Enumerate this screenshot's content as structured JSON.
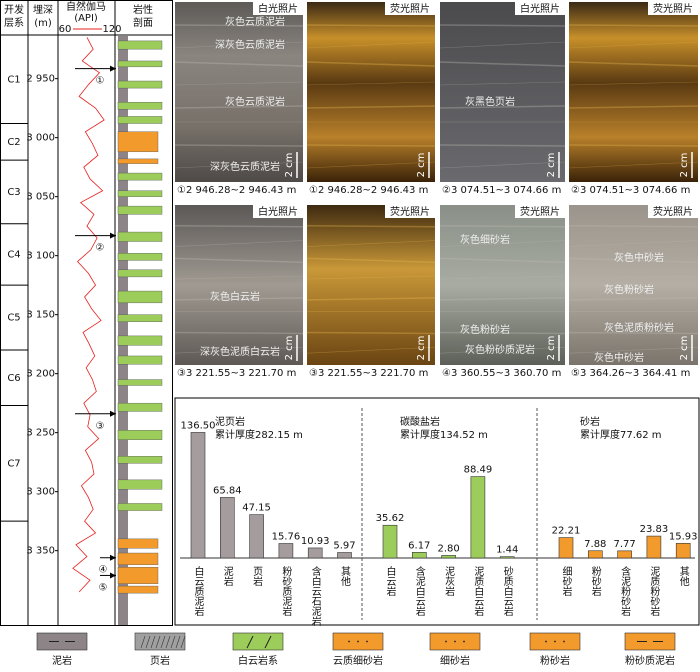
{
  "log": {
    "headers": {
      "formation": [
        "开发",
        "层系"
      ],
      "depth": [
        "埋深",
        "(m)"
      ],
      "gamma": [
        "自然伽马",
        "(API)"
      ],
      "lithology": [
        "岩性",
        "剖面"
      ]
    },
    "ylim": [
      2913,
      3413
    ],
    "yticks": [
      {
        "value": 2950,
        "label": "2 950"
      },
      {
        "value": 3000,
        "label": "3 000"
      },
      {
        "value": 3050,
        "label": "3 050"
      },
      {
        "value": 3100,
        "label": "3 100"
      },
      {
        "value": 3150,
        "label": "3 150"
      },
      {
        "value": 3200,
        "label": "3 200"
      },
      {
        "value": 3250,
        "label": "3 250"
      },
      {
        "value": 3300,
        "label": "3 300"
      },
      {
        "value": 3350,
        "label": "3 350"
      }
    ],
    "gamma_xlim": [
      60,
      120
    ],
    "gamma_xticks": [
      60,
      120
    ],
    "gamma_color": "#e8201c",
    "gamma_depth": [
      2915,
      2925,
      2935,
      2945,
      2955,
      2965,
      2975,
      2985,
      2995,
      3005,
      3015,
      3025,
      3035,
      3045,
      3055,
      3065,
      3075,
      3085,
      3095,
      3105,
      3115,
      3125,
      3135,
      3145,
      3155,
      3165,
      3175,
      3185,
      3195,
      3205,
      3215,
      3225,
      3235,
      3245,
      3255,
      3265,
      3275,
      3285,
      3295,
      3305,
      3315,
      3325,
      3335,
      3345,
      3355,
      3365,
      3375,
      3385
    ],
    "gamma_values": [
      88,
      96,
      82,
      104,
      90,
      78,
      99,
      110,
      86,
      95,
      102,
      84,
      92,
      108,
      80,
      97,
      88,
      101,
      93,
      76,
      90,
      99,
      85,
      94,
      106,
      83,
      91,
      98,
      87,
      95,
      100,
      84,
      92,
      89,
      103,
      86,
      94,
      97,
      81,
      90,
      96,
      85,
      99,
      74,
      88,
      70,
      92,
      78
    ],
    "layers": [
      {
        "name": "C1",
        "top": 2913,
        "bottom": 2988
      },
      {
        "name": "C2",
        "top": 2988,
        "bottom": 3019
      },
      {
        "name": "C3",
        "top": 3019,
        "bottom": 3073
      },
      {
        "name": "C4",
        "top": 3073,
        "bottom": 3125
      },
      {
        "name": "C5",
        "top": 3125,
        "bottom": 3180
      },
      {
        "name": "C6",
        "top": 3180,
        "bottom": 3227
      },
      {
        "name": "C7",
        "top": 3227,
        "bottom": 3325
      }
    ],
    "intervals": [
      [
        2918,
        2925,
        2
      ],
      [
        2935,
        2940,
        2
      ],
      [
        2952,
        2958,
        2
      ],
      [
        2970,
        2976,
        2
      ],
      [
        2982,
        2988,
        2
      ],
      [
        2995,
        3012,
        3
      ],
      [
        3018,
        3022,
        6
      ],
      [
        3030,
        3036,
        2
      ],
      [
        3045,
        3050,
        2
      ],
      [
        3058,
        3065,
        2
      ],
      [
        3080,
        3088,
        2
      ],
      [
        3098,
        3104,
        2
      ],
      [
        3112,
        3118,
        2
      ],
      [
        3130,
        3140,
        2
      ],
      [
        3150,
        3156,
        2
      ],
      [
        3168,
        3176,
        2
      ],
      [
        3185,
        3192,
        2
      ],
      [
        3205,
        3210,
        2
      ],
      [
        3225,
        3232,
        2
      ],
      [
        3248,
        3256,
        2
      ],
      [
        3270,
        3276,
        2
      ],
      [
        3290,
        3298,
        2
      ],
      [
        3310,
        3316,
        2
      ],
      [
        3340,
        3348,
        4
      ],
      [
        3352,
        3362,
        5
      ],
      [
        3364,
        3378,
        3
      ],
      [
        3380,
        3386,
        6
      ]
    ],
    "samples": [
      {
        "label": "①",
        "depth": 2941.5
      },
      {
        "label": "②",
        "depth": 3083
      },
      {
        "label": "③",
        "depth": 3234
      },
      {
        "label": "④",
        "depth": 3356
      },
      {
        "label": "⑤",
        "depth": 3371
      }
    ]
  },
  "photos": [
    {
      "light": "白光照片",
      "labels": [
        "灰色云质泥岩",
        "深灰色云质泥岩",
        "灰色云质泥岩",
        "深灰色云质泥岩"
      ],
      "scale": "2 cm",
      "caption": "①2 946.28~2 946.43 m"
    },
    {
      "light": "荧光照片",
      "scale": "2 cm",
      "caption": "①2 946.28~2 946.43 m"
    },
    {
      "light": "白光照片",
      "labels": [
        "灰黑色页岩"
      ],
      "scale": "2 cm",
      "caption": "②3 074.51~3 074.66 m"
    },
    {
      "light": "荧光照片",
      "scale": "2 cm",
      "caption": "②3 074.51~3 074.66 m"
    },
    {
      "light": "白光照片",
      "labels": [
        "灰色白云岩",
        "深灰色泥质白云岩"
      ],
      "scale": "2 cm",
      "caption": "③3 221.55~3 221.70 m"
    },
    {
      "light": "荧光照片",
      "scale": "2 cm",
      "caption": "③3 221.55~3 221.70 m"
    },
    {
      "light": "荧光照片",
      "labels": [
        "灰色细砂岩",
        "灰色粉砂岩",
        "灰色粉砂质泥岩"
      ],
      "scale": "2 cm",
      "caption": "④3 360.55~3 360.70 m"
    },
    {
      "light": "荧光照片",
      "labels": [
        "灰色中砂岩",
        "灰色粉砂岩",
        "灰色泥质粉砂岩",
        "灰色中砂岩"
      ],
      "scale": "2 cm",
      "caption": "⑤3 364.26~3 364.41 m"
    }
  ],
  "chart_data": {
    "type": "bar",
    "ylim": [
      0,
      150
    ],
    "series": [
      {
        "name": "泥页岩",
        "note": "累计厚度282.15 m",
        "color": "#a59c9e",
        "categories": [
          "白云质泥岩",
          "泥岩",
          "页岩",
          "粉砂质泥岩",
          "含白云石泥岩",
          "其他"
        ],
        "values": [
          136.5,
          65.84,
          47.15,
          15.76,
          10.93,
          5.97
        ],
        "value_labels": [
          "136.50",
          "65.84",
          "47.15",
          "15.76",
          "10.93",
          "5.97"
        ]
      },
      {
        "name": "碳酸盐岩",
        "note": "累计厚度134.52 m",
        "color": "#9ccc5a",
        "categories": [
          "白云岩",
          "含泥白云岩",
          "泥灰岩",
          "泥质白云岩",
          "砂质白云岩"
        ],
        "values": [
          35.62,
          6.17,
          2.8,
          88.49,
          1.44
        ],
        "value_labels": [
          "35.62",
          "6.17",
          "2.80",
          "88.49",
          "1.44"
        ]
      },
      {
        "name": "砂岩",
        "note": "累计厚度77.62 m",
        "color": "#f39a2c",
        "categories": [
          "细砂岩",
          "粉砂岩",
          "含泥粉砂岩",
          "泥质粉砂岩",
          "其他"
        ],
        "values": [
          22.21,
          7.88,
          7.77,
          23.83,
          15.93
        ],
        "value_labels": [
          "22.21",
          "7.88",
          "7.77",
          "23.83",
          "15.93"
        ]
      }
    ]
  },
  "legend": {
    "items": [
      "泥岩",
      "页岩",
      "白云岩系",
      "云质细砂岩",
      "细砂岩",
      "粉砂岩",
      "粉砂质泥岩"
    ],
    "colors": [
      "#8c8486",
      "#a0a0a0",
      "#9ccc5a",
      "#f39a2c",
      "#f39a2c",
      "#f39a2c",
      "#f39a2c"
    ]
  }
}
